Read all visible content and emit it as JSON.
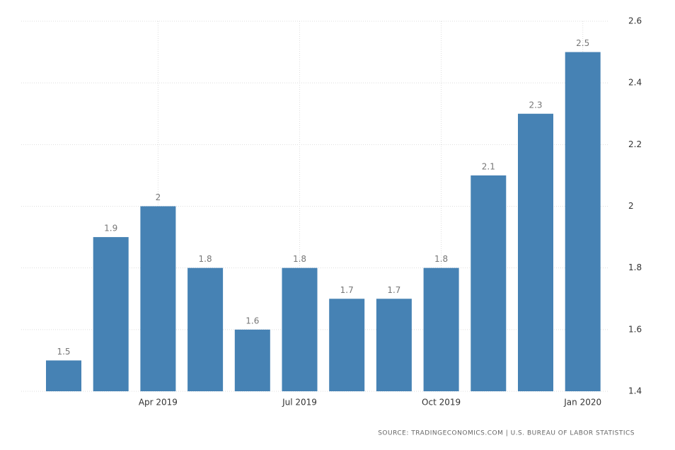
{
  "chart_data": {
    "type": "bar",
    "categories": [
      null,
      null,
      "Apr 2019",
      null,
      null,
      "Jul 2019",
      null,
      null,
      "Oct 2019",
      null,
      null,
      "Jan 2020"
    ],
    "values": [
      1.5,
      1.9,
      2,
      1.8,
      1.6,
      1.8,
      1.7,
      1.7,
      1.8,
      2.1,
      2.3,
      2.5
    ],
    "color": "#4682b4",
    "ylim": [
      1.4,
      2.6
    ],
    "yticks": [
      1.4,
      1.6,
      1.8,
      2,
      2.2,
      2.4,
      2.6
    ],
    "grid": true,
    "source": "SOURCE: TRADINGECONOMICS.COM | U.S. BUREAU OF LABOR STATISTICS"
  }
}
